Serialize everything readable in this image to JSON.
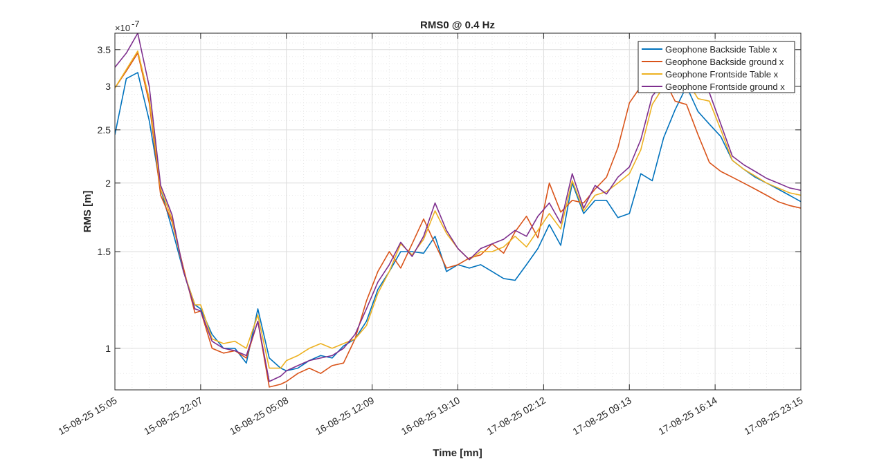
{
  "chart_data": {
    "type": "line",
    "title": "RMS0 @ 0.4 Hz",
    "xlabel": "Time [mn]",
    "ylabel": "RMS [m]",
    "y_exponent_base": "×10",
    "y_exponent_power": "-7",
    "yscale": "log",
    "ylim": [
      0.84,
      3.75
    ],
    "xlim": [
      0,
      48
    ],
    "x_tick_labels": [
      "15-08-25 15:05",
      "15-08-25 22:07",
      "16-08-25 05:08",
      "16-08-25 12:09",
      "16-08-25 19:10",
      "17-08-25 02:12",
      "17-08-25 09:13",
      "17-08-25 16:14",
      "17-08-25 23:15"
    ],
    "x_tick_values": [
      0,
      6,
      12,
      18,
      24,
      30,
      36,
      42,
      48
    ],
    "y_ticks": [
      1,
      1.5,
      2,
      2.5,
      3,
      3.5
    ],
    "y_tick_labels": [
      "1",
      "1.5",
      "2",
      "2.5",
      "3",
      "3.5"
    ],
    "grid": true,
    "minor_grid": true,
    "legend_position": "top-right",
    "x": [
      0,
      0.8,
      1.6,
      2.4,
      3.2,
      4.0,
      4.8,
      5.6,
      6.0,
      6.8,
      7.6,
      8.4,
      9.2,
      10.0,
      10.8,
      11.6,
      12.0,
      12.8,
      13.6,
      14.4,
      15.2,
      16.0,
      16.8,
      17.6,
      18.4,
      19.2,
      20.0,
      20.8,
      21.6,
      22.4,
      23.2,
      24.0,
      24.8,
      25.6,
      26.4,
      27.2,
      28.0,
      28.8,
      29.6,
      30.4,
      31.2,
      32.0,
      32.8,
      33.6,
      34.4,
      35.2,
      36.0,
      36.8,
      37.6,
      38.4,
      39.2,
      40.0,
      40.8,
      41.6,
      42.4,
      43.2,
      44.0,
      44.8,
      45.6,
      46.4,
      47.2,
      48.0
    ],
    "series": [
      {
        "name": "Geophone Backside Table x",
        "color": "#0072BD",
        "values": [
          2.45,
          3.1,
          3.18,
          2.6,
          1.95,
          1.65,
          1.38,
          1.2,
          1.18,
          1.06,
          1.0,
          1.0,
          0.94,
          1.18,
          0.96,
          0.92,
          0.91,
          0.92,
          0.95,
          0.97,
          0.96,
          1.01,
          1.04,
          1.12,
          1.28,
          1.38,
          1.5,
          1.5,
          1.49,
          1.6,
          1.38,
          1.42,
          1.4,
          1.42,
          1.38,
          1.34,
          1.33,
          1.42,
          1.52,
          1.68,
          1.54,
          2.0,
          1.76,
          1.86,
          1.86,
          1.73,
          1.76,
          2.08,
          2.02,
          2.42,
          2.72,
          3.0,
          2.7,
          2.56,
          2.43,
          2.2,
          2.12,
          2.05,
          2.0,
          1.95,
          1.9,
          1.85
        ]
      },
      {
        "name": "Geophone Backside ground x",
        "color": "#D95319",
        "values": [
          2.98,
          3.2,
          3.45,
          2.8,
          1.9,
          1.7,
          1.4,
          1.16,
          1.17,
          1.0,
          0.98,
          0.99,
          0.96,
          1.12,
          0.85,
          0.86,
          0.87,
          0.9,
          0.92,
          0.9,
          0.93,
          0.94,
          1.04,
          1.22,
          1.38,
          1.5,
          1.4,
          1.55,
          1.72,
          1.55,
          1.4,
          1.42,
          1.46,
          1.48,
          1.55,
          1.49,
          1.63,
          1.74,
          1.59,
          2.0,
          1.77,
          1.86,
          1.84,
          1.95,
          2.05,
          2.32,
          2.8,
          3.0,
          3.2,
          3.1,
          2.82,
          2.78,
          2.45,
          2.18,
          2.1,
          2.05,
          2.0,
          1.95,
          1.9,
          1.85,
          1.82,
          1.8
        ]
      },
      {
        "name": "Geophone Frontside Table x",
        "color": "#EDB120",
        "values": [
          2.98,
          3.22,
          3.48,
          2.85,
          1.95,
          1.72,
          1.38,
          1.2,
          1.2,
          1.04,
          1.02,
          1.03,
          1.0,
          1.15,
          0.92,
          0.92,
          0.95,
          0.97,
          1.0,
          1.02,
          1.0,
          1.02,
          1.04,
          1.1,
          1.26,
          1.38,
          1.55,
          1.48,
          1.58,
          1.78,
          1.62,
          1.52,
          1.45,
          1.5,
          1.5,
          1.53,
          1.6,
          1.53,
          1.64,
          1.76,
          1.65,
          2.02,
          1.78,
          1.9,
          1.93,
          2.0,
          2.08,
          2.3,
          2.78,
          3.0,
          3.0,
          3.08,
          2.85,
          2.82,
          2.5,
          2.2,
          2.12,
          2.06,
          2.0,
          1.96,
          1.92,
          1.9
        ]
      },
      {
        "name": "Geophone Frontside ground x",
        "color": "#7E2F8E",
        "values": [
          3.25,
          3.45,
          3.75,
          3.0,
          1.98,
          1.75,
          1.38,
          1.18,
          1.17,
          1.03,
          1.0,
          0.99,
          0.97,
          1.12,
          0.87,
          0.89,
          0.91,
          0.93,
          0.95,
          0.96,
          0.97,
          1.0,
          1.06,
          1.18,
          1.32,
          1.42,
          1.56,
          1.47,
          1.6,
          1.84,
          1.64,
          1.52,
          1.45,
          1.52,
          1.55,
          1.58,
          1.64,
          1.6,
          1.74,
          1.84,
          1.69,
          2.08,
          1.8,
          1.98,
          1.91,
          2.05,
          2.14,
          2.4,
          2.88,
          3.05,
          3.1,
          3.16,
          2.98,
          2.92,
          2.56,
          2.24,
          2.16,
          2.1,
          2.04,
          2.0,
          1.96,
          1.94
        ]
      }
    ]
  }
}
